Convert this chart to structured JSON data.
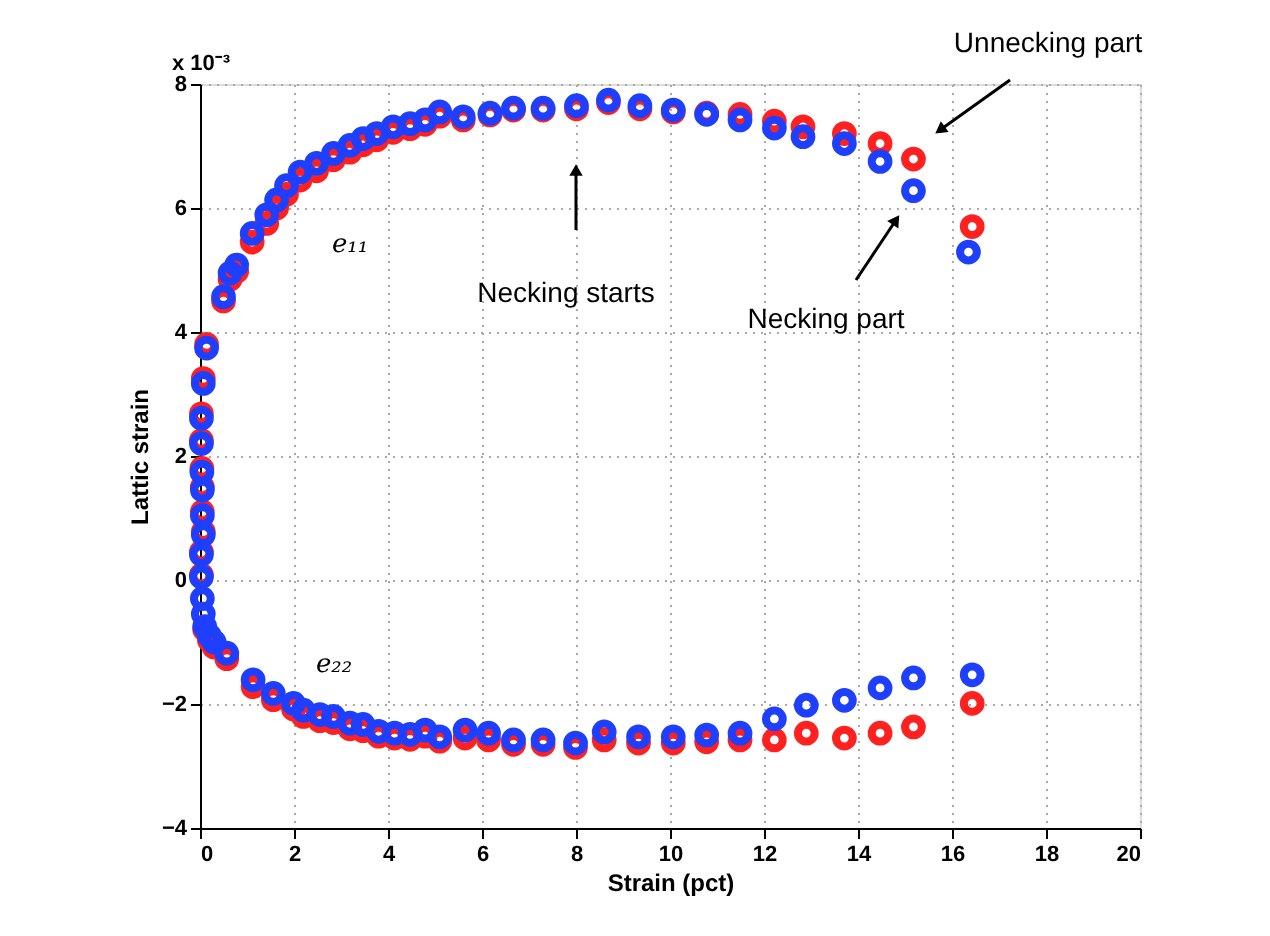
{
  "chart_data": {
    "type": "scatter",
    "xlabel": "Strain (pct)",
    "ylabel": "Lattic strain",
    "marker": "circle",
    "grid": true,
    "xlim": [
      0,
      20
    ],
    "xticks": [
      0,
      2,
      4,
      6,
      8,
      10,
      12,
      14,
      16,
      18,
      20
    ],
    "ylim": [
      -4,
      8
    ],
    "yticks": [
      -4,
      -2,
      0,
      2,
      4,
      6,
      8
    ],
    "annotations": [
      "x 10⁻³",
      "e₁₁",
      "e₂₂",
      "Necking starts",
      "Necking part",
      "Unnecking part"
    ],
    "series": [
      {
        "color": "#ff2020",
        "x": [
          16.43,
          15.18,
          14.47,
          13.71,
          12.83,
          12.22,
          11.49,
          10.78,
          10.07,
          9.36,
          8.69,
          8.01,
          7.3,
          6.67,
          6.17,
          5.6,
          5.1,
          4.79,
          4.47,
          4.11,
          3.76,
          3.47,
          3.19,
          2.84,
          2.48,
          2.13,
          1.84,
          1.63,
          1.42,
          1.11,
          0.78,
          0.64,
          0.5,
          0.14,
          0.07,
          0.03,
          0.03,
          0.04,
          0.05,
          0.05,
          0.07,
          0.03,
          0.03,
          0.05,
          0.07,
          0.1,
          0.2,
          0.3,
          0.57,
          1.13,
          1.56,
          1.99,
          2.2,
          2.55,
          2.84,
          3.19,
          3.47,
          3.8,
          4.14,
          4.47,
          4.79,
          5.1,
          5.64,
          6.14,
          6.67,
          7.3,
          7.99,
          8.6,
          9.33,
          10.07,
          10.78,
          11.49,
          12.22,
          12.9,
          13.71,
          14.47,
          15.18,
          16.43
        ],
        "values": [
          5.7,
          6.79,
          7.04,
          7.2,
          7.31,
          7.4,
          7.51,
          7.53,
          7.55,
          7.6,
          7.7,
          7.6,
          7.58,
          7.58,
          7.5,
          7.42,
          7.48,
          7.35,
          7.28,
          7.22,
          7.1,
          7.02,
          6.9,
          6.78,
          6.6,
          6.45,
          6.22,
          6.0,
          5.75,
          5.45,
          4.98,
          4.85,
          4.5,
          3.8,
          3.25,
          2.68,
          2.25,
          1.8,
          1.5,
          1.1,
          0.78,
          0.45,
          0.08,
          null,
          null,
          -0.8,
          -0.97,
          -1.08,
          -1.27,
          -1.72,
          -1.93,
          -2.08,
          -2.2,
          -2.27,
          -2.3,
          -2.4,
          -2.43,
          -2.52,
          -2.55,
          -2.57,
          -2.52,
          -2.6,
          -2.55,
          -2.58,
          -2.65,
          -2.65,
          -2.7,
          -2.58,
          -2.63,
          -2.63,
          -2.61,
          -2.58,
          -2.58,
          -2.47,
          -2.55,
          -2.47,
          -2.37,
          -1.99
        ]
      },
      {
        "color": "#1f3fff",
        "x": [
          16.35,
          15.18,
          14.47,
          13.71,
          12.83,
          12.22,
          11.49,
          10.78,
          10.07,
          9.36,
          8.69,
          8.01,
          7.3,
          6.67,
          6.17,
          5.6,
          5.1,
          4.79,
          4.47,
          4.11,
          3.76,
          3.47,
          3.19,
          2.84,
          2.48,
          2.13,
          1.84,
          1.63,
          1.42,
          1.11,
          0.78,
          0.64,
          0.5,
          0.14,
          0.07,
          0.03,
          0.03,
          0.04,
          0.05,
          0.05,
          0.07,
          0.03,
          0.03,
          0.05,
          0.07,
          0.1,
          0.2,
          0.3,
          0.57,
          1.13,
          1.56,
          1.99,
          2.2,
          2.55,
          2.84,
          3.19,
          3.47,
          3.8,
          4.14,
          4.47,
          4.79,
          5.1,
          5.64,
          6.14,
          6.67,
          7.3,
          7.99,
          8.6,
          9.33,
          10.07,
          10.78,
          11.49,
          12.22,
          12.9,
          13.71,
          14.47,
          15.18,
          16.43
        ],
        "values": [
          5.29,
          6.28,
          6.75,
          7.04,
          7.15,
          7.29,
          7.42,
          7.51,
          7.58,
          7.65,
          7.74,
          7.65,
          7.61,
          7.61,
          7.53,
          7.47,
          7.55,
          7.42,
          7.36,
          7.31,
          7.2,
          7.12,
          7.01,
          6.88,
          6.72,
          6.58,
          6.36,
          6.13,
          5.89,
          5.59,
          5.08,
          4.95,
          4.57,
          3.74,
          3.17,
          2.61,
          2.2,
          1.74,
          1.45,
          1.04,
          0.73,
          0.41,
          0.05,
          -0.3,
          -0.55,
          -0.75,
          -0.9,
          -1.0,
          -1.18,
          -1.61,
          -1.83,
          -1.99,
          -2.1,
          -2.17,
          -2.2,
          -2.31,
          -2.33,
          -2.44,
          -2.47,
          -2.49,
          -2.42,
          -2.53,
          -2.42,
          -2.47,
          -2.58,
          -2.58,
          -2.63,
          -2.45,
          -2.53,
          -2.53,
          -2.5,
          -2.47,
          -2.24,
          -2.02,
          -1.94,
          -1.74,
          -1.58,
          -1.53
        ]
      }
    ]
  }
}
